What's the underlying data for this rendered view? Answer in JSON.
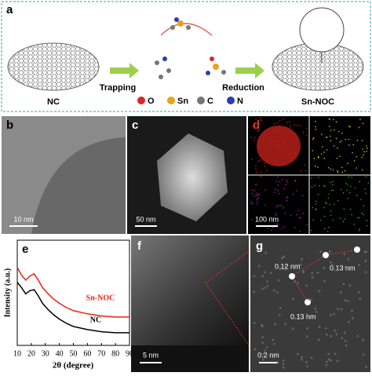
{
  "panel_a": {
    "label": "a",
    "left": "NC",
    "trap": "Trapping",
    "reduce": "Reduction",
    "right": "Sn-NOC",
    "legend": [
      "O",
      "Sn",
      "C",
      "N"
    ]
  },
  "panel_b": {
    "label": "b",
    "scale": "10 nm"
  },
  "panel_c": {
    "label": "c",
    "scale": "50 nm"
  },
  "panel_d": {
    "label": "d",
    "scale": "100 nm"
  },
  "panel_f": {
    "label": "f",
    "scale": "5 nm"
  },
  "panel_g": {
    "label": "g",
    "scale": "0.2 nm",
    "spacings": [
      "0.12 nm",
      "0.13 nm",
      "0.13 nm"
    ]
  },
  "chart_data": {
    "type": "line",
    "label": "e",
    "x_label": "2θ (degree)",
    "y_label": "Intensity (a.u.)",
    "x": [
      10,
      13,
      16,
      19,
      22,
      25,
      28,
      32,
      36,
      40,
      45,
      50,
      60,
      70,
      80,
      90
    ],
    "series": [
      {
        "name": "Sn-NOC",
        "color": "#e8231b",
        "values": [
          74,
          67,
          62,
          66,
          68,
          62,
          55,
          49,
          44,
          40,
          36,
          33,
          30,
          28,
          27,
          27
        ]
      },
      {
        "name": "NC",
        "color": "#000000",
        "values": [
          60,
          55,
          49,
          52,
          53,
          47,
          40,
          34,
          29,
          25,
          21,
          18,
          15,
          13,
          12,
          12
        ]
      }
    ],
    "xlim": [
      10,
      90
    ],
    "xticks": [
      10,
      20,
      30,
      40,
      50,
      60,
      70,
      80,
      90
    ],
    "ylim": [
      0,
      100
    ]
  }
}
